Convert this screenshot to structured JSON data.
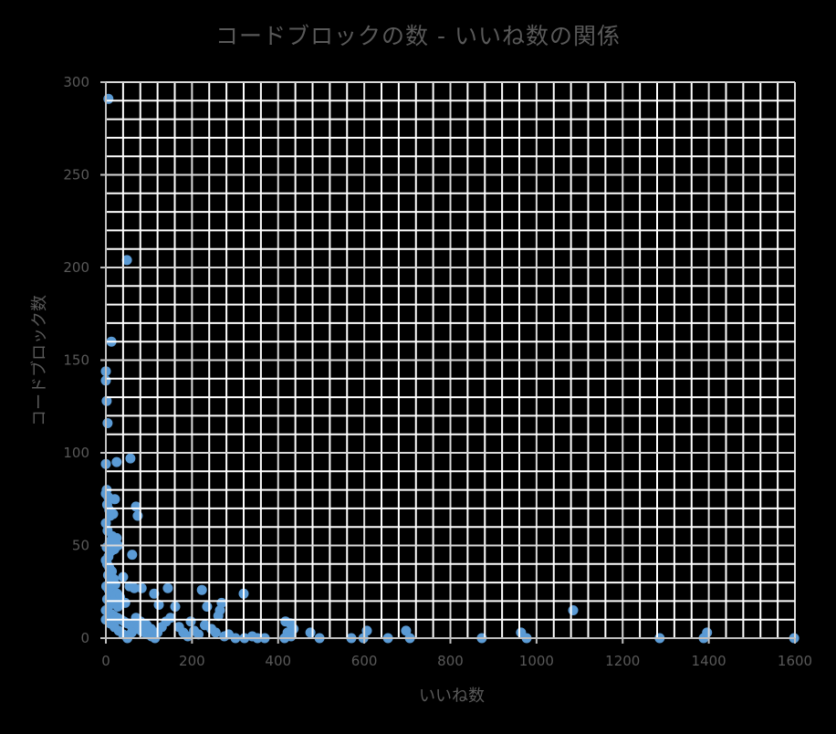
{
  "chart_data": {
    "type": "scatter",
    "title": "コードブロックの数 - いいね数の関係",
    "xlabel": "いいね数",
    "ylabel": "コードブロック数",
    "xlim": [
      0,
      1600
    ],
    "ylim": [
      0,
      300
    ],
    "x_ticks": [
      0,
      200,
      400,
      600,
      800,
      1000,
      1200,
      1400,
      1600
    ],
    "y_ticks": [
      0,
      50,
      100,
      150,
      200,
      250,
      300
    ],
    "x_minor_step": 40,
    "y_minor_step": 10,
    "grid": true,
    "legend": null,
    "series": [
      {
        "name": "コードブロック数",
        "color": "#5B9BD5",
        "points": [
          [
            6,
            291
          ],
          [
            49,
            204
          ],
          [
            13,
            160
          ],
          [
            0,
            144
          ],
          [
            0,
            139
          ],
          [
            2,
            128
          ],
          [
            4,
            116
          ],
          [
            0,
            94
          ],
          [
            25,
            95
          ],
          [
            57,
            97
          ],
          [
            2,
            80
          ],
          [
            6,
            76
          ],
          [
            21,
            75
          ],
          [
            10,
            66
          ],
          [
            17,
            67
          ],
          [
            0,
            78
          ],
          [
            3,
            72
          ],
          [
            8,
            69
          ],
          [
            70,
            71
          ],
          [
            74,
            66
          ],
          [
            61,
            45
          ],
          [
            15,
            55
          ],
          [
            25,
            54
          ],
          [
            0,
            62
          ],
          [
            4,
            58
          ],
          [
            9,
            52
          ],
          [
            2,
            49
          ],
          [
            12,
            47
          ],
          [
            6,
            44
          ],
          [
            20,
            48
          ],
          [
            28,
            50
          ],
          [
            0,
            42
          ],
          [
            3,
            40
          ],
          [
            8,
            38
          ],
          [
            14,
            36
          ],
          [
            5,
            34
          ],
          [
            18,
            32
          ],
          [
            40,
            33
          ],
          [
            10,
            30
          ],
          [
            22,
            29
          ],
          [
            1,
            28
          ],
          [
            7,
            26
          ],
          [
            13,
            25
          ],
          [
            26,
            24
          ],
          [
            33,
            22
          ],
          [
            3,
            21
          ],
          [
            16,
            20
          ],
          [
            45,
            19
          ],
          [
            9,
            18
          ],
          [
            28,
            17
          ],
          [
            55,
            28
          ],
          [
            66,
            27
          ],
          [
            83,
            27
          ],
          [
            144,
            27
          ],
          [
            112,
            24
          ],
          [
            223,
            26
          ],
          [
            320,
            24
          ],
          [
            0,
            15
          ],
          [
            5,
            14
          ],
          [
            12,
            13
          ],
          [
            19,
            12
          ],
          [
            27,
            11
          ],
          [
            35,
            10
          ],
          [
            42,
            9
          ],
          [
            50,
            8
          ],
          [
            58,
            7
          ],
          [
            66,
            6
          ],
          [
            74,
            5
          ],
          [
            82,
            4
          ],
          [
            90,
            3
          ],
          [
            98,
            2
          ],
          [
            106,
            1
          ],
          [
            114,
            0
          ],
          [
            0,
            10
          ],
          [
            10,
            8
          ],
          [
            20,
            6
          ],
          [
            30,
            4
          ],
          [
            40,
            2
          ],
          [
            50,
            0
          ],
          [
            60,
            3
          ],
          [
            70,
            11
          ],
          [
            80,
            9
          ],
          [
            95,
            7
          ],
          [
            105,
            5
          ],
          [
            120,
            3
          ],
          [
            130,
            6
          ],
          [
            140,
            9
          ],
          [
            150,
            11
          ],
          [
            123,
            18
          ],
          [
            161,
            17
          ],
          [
            235,
            17
          ],
          [
            265,
            15
          ],
          [
            269,
            19
          ],
          [
            261,
            12
          ],
          [
            197,
            9
          ],
          [
            170,
            6
          ],
          [
            180,
            3
          ],
          [
            190,
            1
          ],
          [
            205,
            4
          ],
          [
            215,
            2
          ],
          [
            230,
            7
          ],
          [
            245,
            5
          ],
          [
            255,
            3
          ],
          [
            275,
            1
          ],
          [
            285,
            2
          ],
          [
            301,
            0
          ],
          [
            322,
            0
          ],
          [
            340,
            1
          ],
          [
            352,
            0
          ],
          [
            369,
            0
          ],
          [
            417,
            9
          ],
          [
            428,
            8
          ],
          [
            436,
            5
          ],
          [
            422,
            3
          ],
          [
            415,
            0
          ],
          [
            430,
            1
          ],
          [
            475,
            3
          ],
          [
            496,
            0
          ],
          [
            570,
            0
          ],
          [
            598,
            0
          ],
          [
            606,
            4
          ],
          [
            655,
            0
          ],
          [
            697,
            4
          ],
          [
            706,
            0
          ],
          [
            873,
            0
          ],
          [
            964,
            3
          ],
          [
            977,
            0
          ],
          [
            1085,
            15
          ],
          [
            1286,
            0
          ],
          [
            1388,
            0
          ],
          [
            1396,
            3
          ],
          [
            1598,
            0
          ]
        ]
      }
    ]
  },
  "labels": {
    "title": "コードブロックの数 - いいね数の関係",
    "xlabel": "いいね数",
    "ylabel": "コードブロック数"
  }
}
